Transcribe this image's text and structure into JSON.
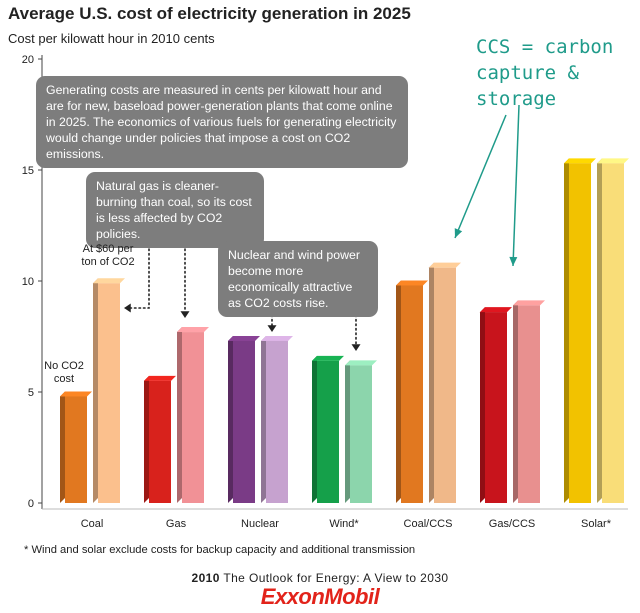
{
  "chart_data": {
    "type": "bar",
    "title": "Average U.S. cost of electricity generation in 2025",
    "ylabel": "Cost per kilowatt hour in 2010 cents",
    "ylim": [
      0,
      20
    ],
    "yticks": [
      0,
      5,
      10,
      15,
      20
    ],
    "categories": [
      "Coal",
      "Gas",
      "Nuclear",
      "Wind*",
      "Coal/CCS",
      "Gas/CCS",
      "Solar*"
    ],
    "series": [
      {
        "name": "No CO2 cost",
        "values": [
          4.8,
          5.5,
          7.3,
          6.4,
          9.8,
          8.6,
          15.3
        ],
        "colors": [
          "#e17820",
          "#d8221c",
          "#7a3b86",
          "#15a04a",
          "#e17820",
          "#c8141c",
          "#f2c200"
        ]
      },
      {
        "name": "At $60 per ton of CO2",
        "values": [
          9.9,
          7.7,
          7.3,
          6.2,
          10.6,
          8.9,
          15.3
        ],
        "colors": [
          "#fbc08d",
          "#f19196",
          "#c6a2cf",
          "#8cd5ac",
          "#f0b889",
          "#e8908f",
          "#f9dd78"
        ]
      }
    ],
    "grid": false,
    "legend": "none"
  },
  "annotations": {
    "main": "Generating costs are measured in cents per kilowatt hour and are for new, baseload power-generation plants that come online in 2025. The economics of various fuels for generating electricity would change under policies that impose a cost on CO2 emissions.",
    "gas_note": "Natural gas is cleaner-burning than coal, so its cost is less affected by CO2 policies.",
    "nuclear_wind_note": "Nuclear and wind power become more economically attractive as CO2 costs rise.",
    "no_co2_label": "No CO2 cost",
    "at60_label": "At $60 per ton of CO2",
    "ccs_note": "CCS = carbon capture & storage"
  },
  "footnote": "* Wind and solar exclude costs for backup capacity and additional transmission",
  "outlook_year": "2010",
  "outlook_text": "The Outlook for Energy: A View to 2030",
  "brand": "ExxonMobil",
  "colors": {
    "bubble": "#7d7d7d",
    "ccs_note": "#1f9b8a",
    "brand": "#e2231a",
    "axis": "#444444"
  }
}
